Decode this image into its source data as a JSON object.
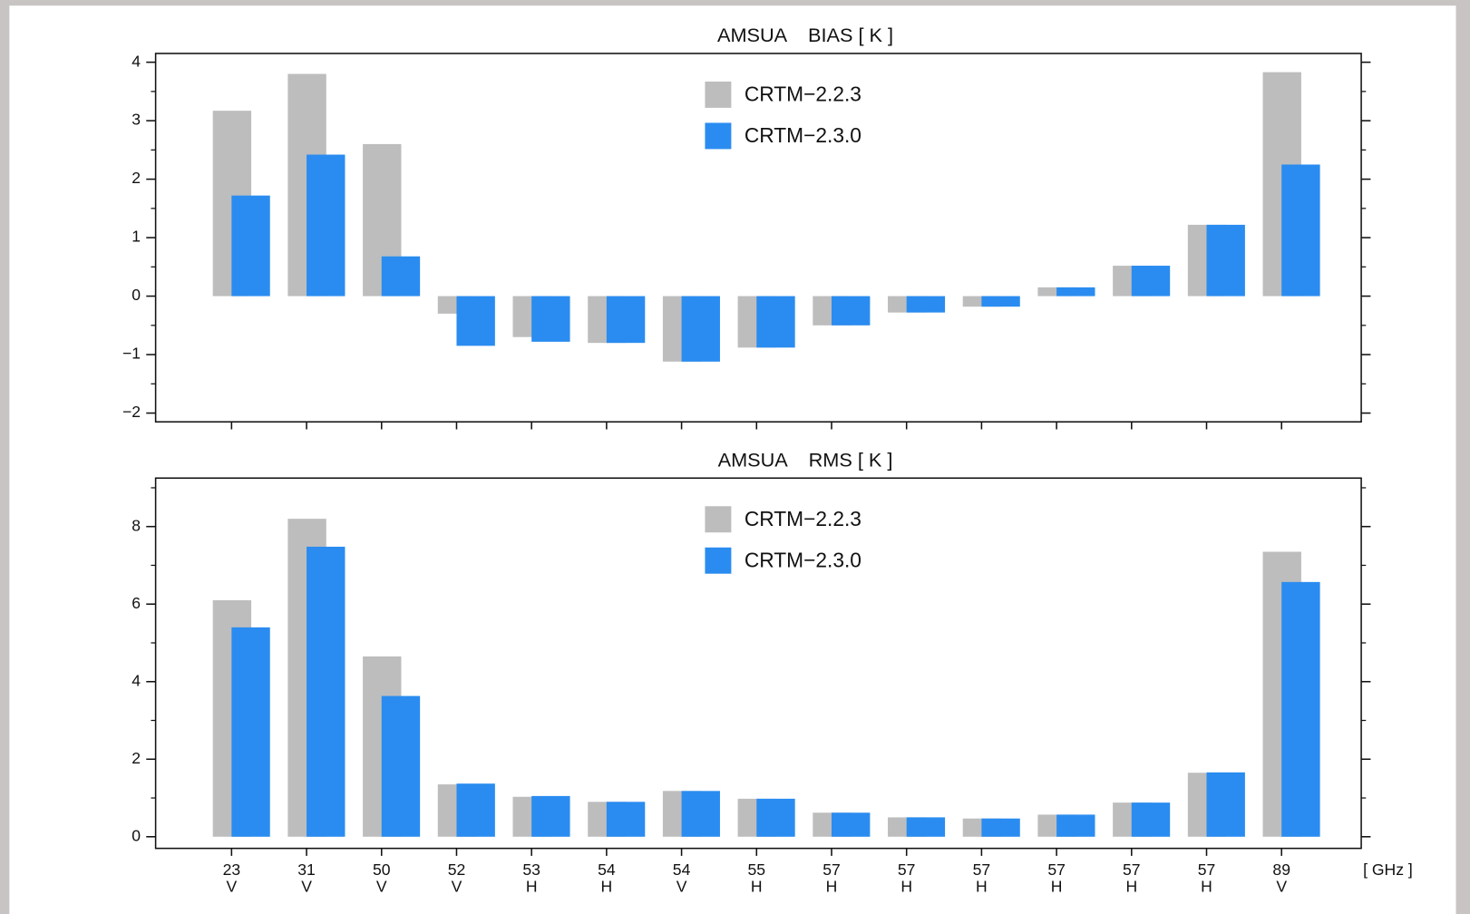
{
  "chart_data": [
    {
      "type": "bar",
      "title": "AMSUA    BIAS [ K ]",
      "categories": [
        null,
        null,
        null,
        null,
        null,
        null,
        null,
        null,
        null,
        null,
        null,
        null,
        null,
        null,
        null
      ],
      "series": [
        {
          "name": "CRTM−2.2.3",
          "color": "#bdbdbd",
          "values": [
            3.17,
            3.8,
            2.6,
            -0.3,
            -0.7,
            -0.8,
            -1.12,
            -0.88,
            -0.5,
            -0.28,
            -0.18,
            0.15,
            0.52,
            1.22,
            3.83
          ]
        },
        {
          "name": "CRTM−2.3.0",
          "color": "#2a8cf0",
          "values": [
            1.72,
            2.42,
            0.68,
            -0.85,
            -0.78,
            -0.8,
            -1.12,
            -0.88,
            -0.5,
            -0.28,
            -0.18,
            0.15,
            0.52,
            1.22,
            2.25
          ]
        }
      ],
      "ylim": [
        -2.15,
        4.15
      ],
      "yticks": [
        {
          "value": -2,
          "label": "−2"
        },
        {
          "value": -1,
          "label": "−1"
        },
        0,
        1,
        2,
        3,
        4
      ],
      "minor_yticks": [
        -1.5,
        -0.5,
        0.5,
        1.5,
        2.5,
        3.5
      ]
    },
    {
      "type": "bar",
      "title": "AMSUA    RMS [ K ]",
      "categories": [
        "23",
        "31",
        "50",
        "52",
        "53",
        "54",
        "54",
        "55",
        "57",
        "57",
        "57",
        "57",
        "57",
        "57",
        "89"
      ],
      "polarizations": [
        "V",
        "V",
        "V",
        "V",
        "H",
        "H",
        "V",
        "H",
        "H",
        "H",
        "H",
        "H",
        "H",
        "H",
        "V"
      ],
      "x_label": "[ GHz ]",
      "series": [
        {
          "name": "CRTM−2.2.3",
          "color": "#bdbdbd",
          "values": [
            6.1,
            8.2,
            4.65,
            1.35,
            1.03,
            0.9,
            1.18,
            0.98,
            0.62,
            0.5,
            0.47,
            0.57,
            0.88,
            1.65,
            7.35
          ]
        },
        {
          "name": "CRTM−2.3.0",
          "color": "#2a8cf0",
          "values": [
            5.4,
            7.48,
            3.63,
            1.37,
            1.05,
            0.9,
            1.18,
            0.98,
            0.62,
            0.5,
            0.47,
            0.57,
            0.88,
            1.66,
            6.57
          ]
        }
      ],
      "ylim": [
        -0.3,
        9.25
      ],
      "yticks": [
        0,
        2,
        4,
        6,
        8
      ],
      "minor_yticks": [
        1,
        3,
        5,
        7,
        9
      ]
    }
  ]
}
